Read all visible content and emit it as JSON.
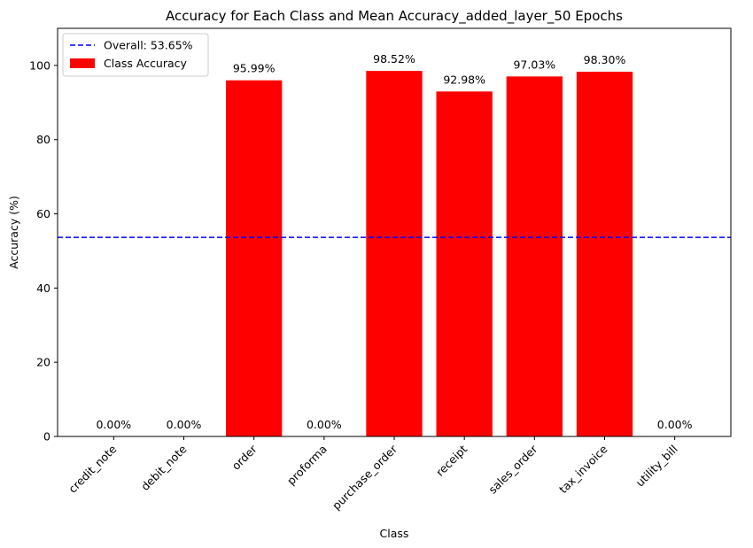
{
  "chart_data": {
    "type": "bar",
    "title": "Accuracy for Each Class and Mean Accuracy_added_layer_50 Epochs",
    "xlabel": "Class",
    "ylabel": "Accuracy (%)",
    "categories": [
      "credit_note",
      "debit_note",
      "order",
      "proforma",
      "purchase_order",
      "receipt",
      "sales_order",
      "tax_invoice",
      "utility_bill"
    ],
    "series": [
      {
        "name": "Class Accuracy",
        "color": "#ff0000",
        "values": [
          0.0,
          0.0,
          95.99,
          0.0,
          98.52,
          92.98,
          97.03,
          98.3,
          0.0
        ]
      }
    ],
    "data_labels": [
      "0.00%",
      "0.00%",
      "95.99%",
      "0.00%",
      "98.52%",
      "92.98%",
      "97.03%",
      "98.30%",
      "0.00%"
    ],
    "reference_line": {
      "name": "Overall: 53.65%",
      "value": 53.65,
      "color": "#0000ff",
      "style": "dashed"
    },
    "ylim": [
      0,
      110
    ],
    "yticks": [
      0,
      20,
      40,
      60,
      80,
      100
    ],
    "grid": false,
    "legend_position": "top-left"
  }
}
